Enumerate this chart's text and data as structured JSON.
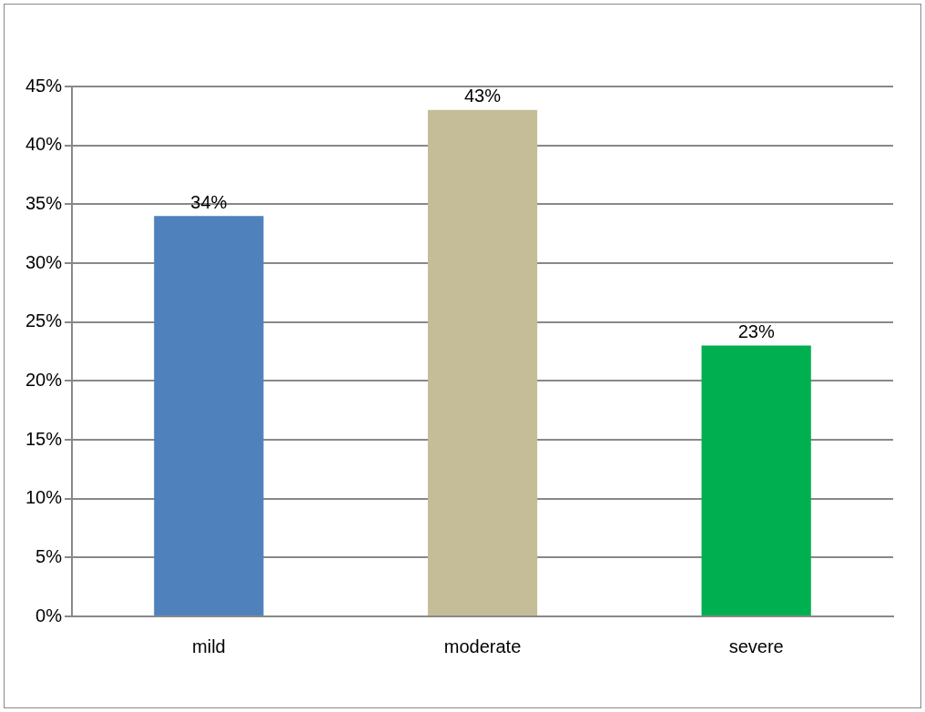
{
  "chart_data": {
    "type": "bar",
    "categories": [
      "mild",
      "moderate",
      "severe"
    ],
    "values": [
      34,
      43,
      23
    ],
    "colors": [
      "#4f81bd",
      "#c4bd97",
      "#00b050"
    ],
    "value_labels": [
      "34%",
      "43%",
      "23%"
    ],
    "ylim": [
      0,
      45
    ],
    "yticks": [
      {
        "value": 0,
        "label": "0%"
      },
      {
        "value": 5,
        "label": "5%"
      },
      {
        "value": 10,
        "label": "10%"
      },
      {
        "value": 15,
        "label": "15%"
      },
      {
        "value": 20,
        "label": "20%"
      },
      {
        "value": 25,
        "label": "25%"
      },
      {
        "value": 30,
        "label": "30%"
      },
      {
        "value": 35,
        "label": "35%"
      },
      {
        "value": 40,
        "label": "40%"
      },
      {
        "value": 45,
        "label": "45%"
      }
    ],
    "grid": "y",
    "legend": false
  }
}
